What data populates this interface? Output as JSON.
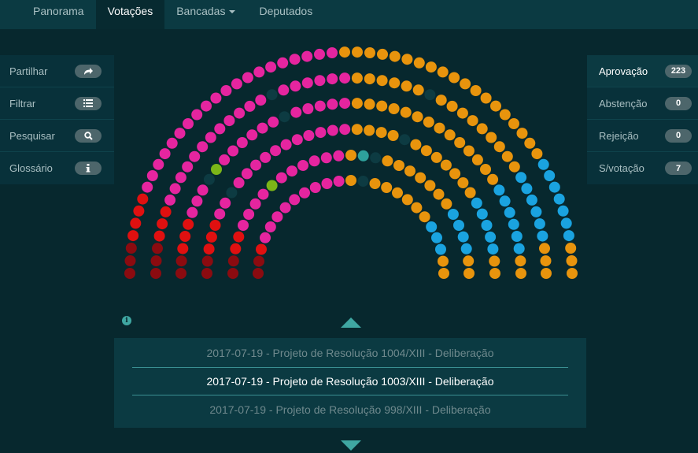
{
  "nav": {
    "items": [
      {
        "label": "Panorama"
      },
      {
        "label": "Votações",
        "active": true
      },
      {
        "label": "Bancadas"
      },
      {
        "label": "Deputados"
      }
    ]
  },
  "left_menu": {
    "items": [
      {
        "label": "Partilhar",
        "icon": "share-icon"
      },
      {
        "label": "Filtrar",
        "icon": "list-icon"
      },
      {
        "label": "Pesquisar",
        "icon": "search-icon"
      },
      {
        "label": "Glossário",
        "icon": "info-icon"
      }
    ]
  },
  "results": {
    "items": [
      {
        "label": "Aprovação",
        "count": "223",
        "active": true
      },
      {
        "label": "Abstenção",
        "count": "0"
      },
      {
        "label": "Rejeição",
        "count": "0"
      },
      {
        "label": "S/votação",
        "count": "7"
      }
    ]
  },
  "votes": {
    "previous": "2017-07-19 - Projeto de Resolução 1004/XIII - Deliberação",
    "current": "2017-07-19 - Projeto de Resolução 1003/XIII - Deliberação",
    "next": "2017-07-19 - Projeto de Resolução 998/XIII - Deliberação"
  },
  "colors": {
    "pink": "#e5259f",
    "orange": "#e8940d",
    "blue": "#1aa3e0",
    "red": "#e01010",
    "darkred": "#8b0b10",
    "green": "#7cb518",
    "teal": "#2ea19c",
    "absent": "#0d3b42"
  }
}
